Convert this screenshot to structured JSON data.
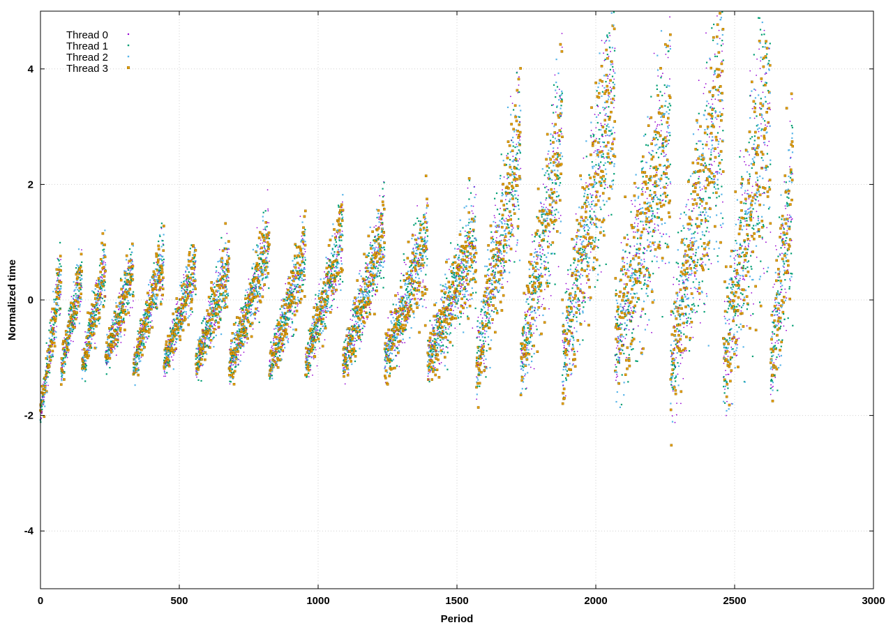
{
  "chart_data": {
    "type": "scatter",
    "title": "",
    "xlabel": "Period",
    "ylabel": "Normalized time",
    "xlim": [
      0,
      3000
    ],
    "ylim": [
      -5,
      5
    ],
    "x_ticks": [
      0,
      500,
      1000,
      1500,
      2000,
      2500,
      3000
    ],
    "x_tick_labels": [
      "0",
      "500",
      "1000",
      "1500",
      "2000",
      "2500",
      "3000"
    ],
    "y_ticks": [
      -4,
      -2,
      0,
      2,
      4
    ],
    "y_tick_labels": [
      "-4",
      "-2",
      "0",
      "2",
      "4"
    ],
    "grid": true,
    "legend_position": "top-left",
    "series": [
      {
        "name": "Thread 0",
        "color": "#9400d3",
        "marker": "dot"
      },
      {
        "name": "Thread 1",
        "color": "#009e73",
        "marker": "small-square"
      },
      {
        "name": "Thread 2",
        "color": "#56b4e9",
        "marker": "small-square"
      },
      {
        "name": "Thread 3",
        "color": "#e69f00",
        "marker": "open-square"
      }
    ],
    "data_description": "Each thread records one normalized time per period for periods 0 to 2710; values rise in sawtooth cycles of about 95 periods, each cycle resetting near -1.1 and climbing; peak spread grows after period 1600",
    "cycles": [
      {
        "start": 0,
        "end": 75,
        "y_start": -2.0,
        "y_end": 0.5,
        "spread": 0.25
      },
      {
        "start": 75,
        "end": 150,
        "y_start": -1.2,
        "y_end": 0.55,
        "spread": 0.25
      },
      {
        "start": 150,
        "end": 235,
        "y_start": -1.15,
        "y_end": 0.6,
        "spread": 0.25
      },
      {
        "start": 235,
        "end": 335,
        "y_start": -1.05,
        "y_end": 0.55,
        "spread": 0.25
      },
      {
        "start": 335,
        "end": 445,
        "y_start": -1.2,
        "y_end": 0.8,
        "spread": 0.25
      },
      {
        "start": 445,
        "end": 560,
        "y_start": -1.15,
        "y_end": 0.65,
        "spread": 0.25
      },
      {
        "start": 560,
        "end": 680,
        "y_start": -1.15,
        "y_end": 0.7,
        "spread": 0.28
      },
      {
        "start": 680,
        "end": 825,
        "y_start": -1.2,
        "y_end": 1.05,
        "spread": 0.3
      },
      {
        "start": 825,
        "end": 955,
        "y_start": -1.2,
        "y_end": 0.85,
        "spread": 0.3
      },
      {
        "start": 955,
        "end": 1090,
        "y_start": -1.15,
        "y_end": 1.15,
        "spread": 0.32
      },
      {
        "start": 1090,
        "end": 1240,
        "y_start": -1.1,
        "y_end": 1.2,
        "spread": 0.35
      },
      {
        "start": 1240,
        "end": 1395,
        "y_start": -1.05,
        "y_end": 1.1,
        "spread": 0.38
      },
      {
        "start": 1395,
        "end": 1570,
        "y_start": -1.05,
        "y_end": 1.1,
        "spread": 0.4
      },
      {
        "start": 1570,
        "end": 1730,
        "y_start": -1.15,
        "y_end": 2.8,
        "spread": 0.6
      },
      {
        "start": 1730,
        "end": 1880,
        "y_start": -1.15,
        "y_end": 2.9,
        "spread": 0.65
      },
      {
        "start": 1880,
        "end": 2070,
        "y_start": -1.0,
        "y_end": 3.8,
        "spread": 0.8
      },
      {
        "start": 2070,
        "end": 2270,
        "y_start": -0.8,
        "y_end": 3.0,
        "spread": 0.9
      },
      {
        "start": 2270,
        "end": 2460,
        "y_start": -1.2,
        "y_end": 3.9,
        "spread": 1.0
      },
      {
        "start": 2460,
        "end": 2630,
        "y_start": -1.0,
        "y_end": 3.6,
        "spread": 1.0
      },
      {
        "start": 2630,
        "end": 2710,
        "y_start": -1.2,
        "y_end": 2.0,
        "spread": 0.8
      }
    ]
  }
}
